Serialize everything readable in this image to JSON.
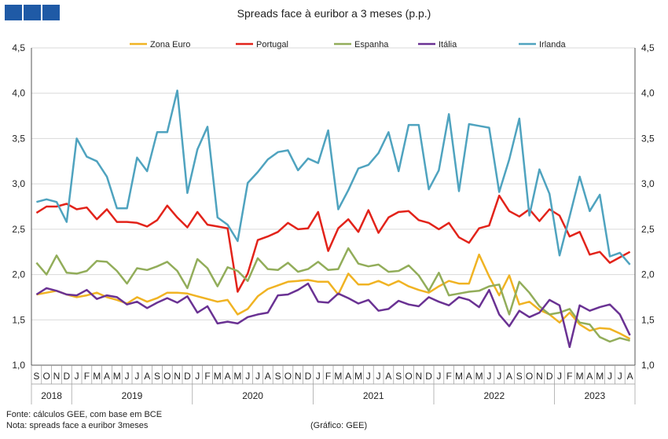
{
  "header": {
    "title": "Spreads face à euribor a 3 meses (p.p.)"
  },
  "footer": {
    "source": "Fonte: cálculos GEE, com base em BCE",
    "note": "Nota: spreads face a euribor 3meses",
    "credit": "(Gráfico: GEE)"
  },
  "chart_data": {
    "type": "line",
    "title": "Spreads face à euribor a 3 meses (p.p.)",
    "ylim": [
      1.0,
      4.5
    ],
    "yticks": [
      "1,0",
      "1,5",
      "2,0",
      "2,5",
      "3,0",
      "3,5",
      "4,0",
      "4,5"
    ],
    "ytick_values": [
      1.0,
      1.5,
      2.0,
      2.5,
      3.0,
      3.5,
      4.0,
      4.5
    ],
    "grid": "horizontal",
    "legend_position": "top",
    "categories": [
      "S",
      "O",
      "N",
      "D",
      "J",
      "F",
      "M",
      "A",
      "M",
      "J",
      "J",
      "A",
      "S",
      "O",
      "N",
      "D",
      "J",
      "F",
      "M",
      "A",
      "M",
      "J",
      "J",
      "A",
      "S",
      "O",
      "N",
      "D",
      "J",
      "F",
      "M",
      "A",
      "M",
      "J",
      "J",
      "A",
      "S",
      "O",
      "N",
      "D",
      "J",
      "F",
      "M",
      "A",
      "M",
      "J",
      "J",
      "A",
      "S",
      "O",
      "N",
      "D",
      "J",
      "F",
      "M",
      "A",
      "M",
      "J",
      "J",
      "A"
    ],
    "years": [
      {
        "label": "2018",
        "start": 0,
        "end": 3
      },
      {
        "label": "2019",
        "start": 4,
        "end": 15
      },
      {
        "label": "2020",
        "start": 16,
        "end": 27
      },
      {
        "label": "2021",
        "start": 28,
        "end": 39
      },
      {
        "label": "2022",
        "start": 40,
        "end": 51
      },
      {
        "label": "2023",
        "start": 52,
        "end": 59
      }
    ],
    "series": [
      {
        "name": "Zona Euro",
        "color": "#f0b323",
        "values": [
          1.78,
          1.8,
          1.82,
          1.78,
          1.75,
          1.77,
          1.8,
          1.75,
          1.72,
          1.68,
          1.75,
          1.7,
          1.74,
          1.8,
          1.8,
          1.79,
          1.76,
          1.73,
          1.7,
          1.72,
          1.56,
          1.62,
          1.76,
          1.84,
          1.88,
          1.92,
          1.93,
          1.94,
          1.92,
          1.92,
          1.78,
          2.01,
          1.89,
          1.89,
          1.93,
          1.88,
          1.93,
          1.87,
          1.83,
          1.8,
          1.87,
          1.93,
          1.9,
          1.9,
          2.22,
          1.98,
          1.77,
          1.99,
          1.67,
          1.7,
          1.61,
          1.56,
          1.47,
          1.58,
          1.45,
          1.38,
          1.41,
          1.4,
          1.35,
          1.29
        ]
      },
      {
        "name": "Portugal",
        "color": "#e2231a",
        "values": [
          2.68,
          2.75,
          2.75,
          2.78,
          2.72,
          2.74,
          2.61,
          2.72,
          2.58,
          2.58,
          2.57,
          2.53,
          2.6,
          2.76,
          2.63,
          2.52,
          2.69,
          2.55,
          2.53,
          2.51,
          1.81,
          2.01,
          2.38,
          2.42,
          2.47,
          2.57,
          2.5,
          2.51,
          2.69,
          2.26,
          2.51,
          2.61,
          2.47,
          2.71,
          2.46,
          2.63,
          2.69,
          2.7,
          2.6,
          2.57,
          2.5,
          2.57,
          2.41,
          2.35,
          2.51,
          2.54,
          2.87,
          2.7,
          2.64,
          2.72,
          2.59,
          2.72,
          2.65,
          2.42,
          2.47,
          2.22,
          2.25,
          2.13,
          2.19,
          2.25
        ]
      },
      {
        "name": "Espanha",
        "color": "#92ad5a",
        "values": [
          2.13,
          2.0,
          2.21,
          2.02,
          2.01,
          2.04,
          2.15,
          2.14,
          2.04,
          1.9,
          2.07,
          2.05,
          2.09,
          2.14,
          2.04,
          1.85,
          2.17,
          2.07,
          1.87,
          2.08,
          2.04,
          1.93,
          2.18,
          2.06,
          2.05,
          2.13,
          2.03,
          2.06,
          2.14,
          2.05,
          2.06,
          2.29,
          2.12,
          2.09,
          2.11,
          2.03,
          2.04,
          2.1,
          1.99,
          1.82,
          2.02,
          1.77,
          1.79,
          1.81,
          1.82,
          1.87,
          1.89,
          1.56,
          1.92,
          1.8,
          1.65,
          1.56,
          1.58,
          1.62,
          1.47,
          1.45,
          1.31,
          1.26,
          1.3,
          1.27
        ]
      },
      {
        "name": "Itália",
        "color": "#6a3293",
        "values": [
          1.78,
          1.85,
          1.82,
          1.78,
          1.77,
          1.83,
          1.73,
          1.77,
          1.75,
          1.67,
          1.7,
          1.63,
          1.69,
          1.74,
          1.69,
          1.76,
          1.58,
          1.65,
          1.46,
          1.48,
          1.46,
          1.53,
          1.56,
          1.58,
          1.77,
          1.78,
          1.83,
          1.9,
          1.7,
          1.69,
          1.79,
          1.74,
          1.68,
          1.72,
          1.6,
          1.62,
          1.71,
          1.67,
          1.65,
          1.75,
          1.7,
          1.66,
          1.75,
          1.72,
          1.64,
          1.83,
          1.56,
          1.43,
          1.6,
          1.53,
          1.58,
          1.72,
          1.66,
          1.2,
          1.66,
          1.6,
          1.64,
          1.67,
          1.56,
          1.33
        ]
      },
      {
        "name": "Irlanda",
        "color": "#4fa3bf",
        "values": [
          2.8,
          2.83,
          2.8,
          2.58,
          3.5,
          3.3,
          3.25,
          3.08,
          2.73,
          2.73,
          3.29,
          3.14,
          3.57,
          3.57,
          4.03,
          2.9,
          3.38,
          3.63,
          2.63,
          2.55,
          2.37,
          3.01,
          3.13,
          3.27,
          3.35,
          3.37,
          3.15,
          3.28,
          3.23,
          3.59,
          2.72,
          2.93,
          3.17,
          3.21,
          3.34,
          3.57,
          3.14,
          3.65,
          3.65,
          2.94,
          3.15,
          3.77,
          2.92,
          3.66,
          3.64,
          3.62,
          2.91,
          3.27,
          3.72,
          2.65,
          3.16,
          2.89,
          2.21,
          2.64,
          3.08,
          2.7,
          2.88,
          2.2,
          2.24,
          2.11
        ]
      }
    ]
  }
}
